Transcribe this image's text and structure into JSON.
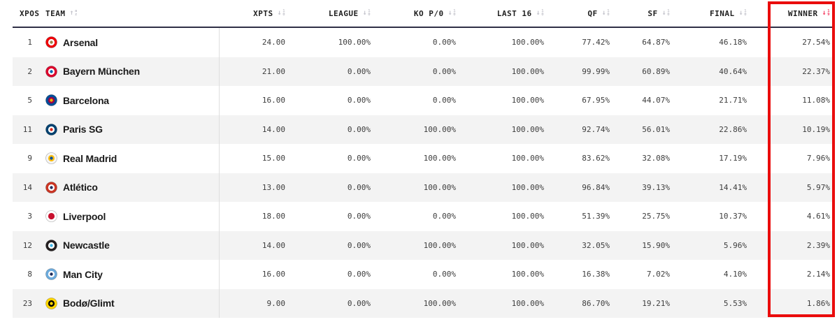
{
  "colors": {
    "stripe": "#f3f3f3",
    "header_rule": "#2f2f45",
    "divider": "#dedede",
    "highlight_border": "#ea0c0c",
    "sort_idle": "#c4c4cc",
    "sort_active": "#f43a5f"
  },
  "table": {
    "columns": [
      {
        "key": "xpos",
        "label": "XPOS",
        "sort": null
      },
      {
        "key": "team",
        "label": "TEAM",
        "sort": {
          "dir": "up",
          "glyphs": [
            "a",
            "z"
          ],
          "active": false
        }
      },
      {
        "key": "xpts",
        "label": "XPTS",
        "sort": {
          "dir": "down",
          "glyphs": [
            "1",
            "0"
          ],
          "active": false
        }
      },
      {
        "key": "league",
        "label": "LEAGUE",
        "sort": {
          "dir": "down",
          "glyphs": [
            "1",
            "0"
          ],
          "active": false
        }
      },
      {
        "key": "kopo",
        "label": "KO P/0",
        "sort": {
          "dir": "down",
          "glyphs": [
            "1",
            "0"
          ],
          "active": false
        }
      },
      {
        "key": "last16",
        "label": "LAST 16",
        "sort": {
          "dir": "down",
          "glyphs": [
            "1",
            "0"
          ],
          "active": false
        }
      },
      {
        "key": "qf",
        "label": "QF",
        "sort": {
          "dir": "down",
          "glyphs": [
            "1",
            "0"
          ],
          "active": false
        }
      },
      {
        "key": "sf",
        "label": "SF",
        "sort": {
          "dir": "down",
          "glyphs": [
            "1",
            "0"
          ],
          "active": false
        }
      },
      {
        "key": "final",
        "label": "FINAL",
        "sort": {
          "dir": "down",
          "glyphs": [
            "1",
            "0"
          ],
          "active": false
        }
      },
      {
        "key": "winner",
        "label": "WINNER",
        "sort": {
          "dir": "down",
          "glyphs": [
            "1",
            "9"
          ],
          "active": true
        }
      }
    ],
    "rows": [
      {
        "xpos": "1",
        "team": "Arsenal",
        "crest": [
          "#ef0107",
          "#ffffff",
          "#9c824a"
        ],
        "xpts": "24.00",
        "league": "100.00%",
        "kopo": "0.00%",
        "last16": "100.00%",
        "qf": "77.42%",
        "sf": "64.87%",
        "final": "46.18%",
        "winner": "27.54%"
      },
      {
        "xpos": "2",
        "team": "Bayern München",
        "crest": [
          "#dc052d",
          "#ffffff",
          "#0066b2"
        ],
        "xpts": "21.00",
        "league": "0.00%",
        "kopo": "0.00%",
        "last16": "100.00%",
        "qf": "99.99%",
        "sf": "60.89%",
        "final": "40.64%",
        "winner": "22.37%"
      },
      {
        "xpos": "5",
        "team": "Barcelona",
        "crest": [
          "#004d98",
          "#a50044",
          "#edbb00"
        ],
        "xpts": "16.00",
        "league": "0.00%",
        "kopo": "0.00%",
        "last16": "100.00%",
        "qf": "67.95%",
        "sf": "44.07%",
        "final": "21.71%",
        "winner": "11.08%"
      },
      {
        "xpos": "11",
        "team": "Paris SG",
        "crest": [
          "#004170",
          "#ffffff",
          "#da291c"
        ],
        "xpts": "14.00",
        "league": "0.00%",
        "kopo": "100.00%",
        "last16": "100.00%",
        "qf": "92.74%",
        "sf": "56.01%",
        "final": "22.86%",
        "winner": "10.19%"
      },
      {
        "xpos": "9",
        "team": "Real Madrid",
        "crest": [
          "#f5f5f5",
          "#febe10",
          "#00529f"
        ],
        "xpts": "15.00",
        "league": "0.00%",
        "kopo": "100.00%",
        "last16": "100.00%",
        "qf": "83.62%",
        "sf": "32.08%",
        "final": "17.19%",
        "winner": "7.96%"
      },
      {
        "xpos": "14",
        "team": "Atlético",
        "crest": [
          "#cb3524",
          "#ffffff",
          "#262f61"
        ],
        "xpts": "13.00",
        "league": "0.00%",
        "kopo": "100.00%",
        "last16": "100.00%",
        "qf": "96.84%",
        "sf": "39.13%",
        "final": "14.41%",
        "winner": "5.97%"
      },
      {
        "xpos": "3",
        "team": "Liverpool",
        "crest": [
          "#ffffff",
          "#c8102e",
          "#c8102e"
        ],
        "xpts": "18.00",
        "league": "0.00%",
        "kopo": "0.00%",
        "last16": "100.00%",
        "qf": "51.39%",
        "sf": "25.75%",
        "final": "10.37%",
        "winner": "4.61%"
      },
      {
        "xpos": "12",
        "team": "Newcastle",
        "crest": [
          "#241f20",
          "#ffffff",
          "#41b6e6"
        ],
        "xpts": "14.00",
        "league": "0.00%",
        "kopo": "100.00%",
        "last16": "100.00%",
        "qf": "32.05%",
        "sf": "15.90%",
        "final": "5.96%",
        "winner": "2.39%"
      },
      {
        "xpos": "8",
        "team": "Man City",
        "crest": [
          "#6cabdd",
          "#ffffff",
          "#1c2c5b"
        ],
        "xpts": "16.00",
        "league": "0.00%",
        "kopo": "0.00%",
        "last16": "100.00%",
        "qf": "16.38%",
        "sf": "7.02%",
        "final": "4.10%",
        "winner": "2.14%"
      },
      {
        "xpos": "23",
        "team": "Bodø/Glimt",
        "crest": [
          "#ffd500",
          "#000000",
          "#ffd500"
        ],
        "xpts": "9.00",
        "league": "0.00%",
        "kopo": "100.00%",
        "last16": "100.00%",
        "qf": "86.70%",
        "sf": "19.21%",
        "final": "5.53%",
        "winner": "1.86%"
      }
    ]
  }
}
